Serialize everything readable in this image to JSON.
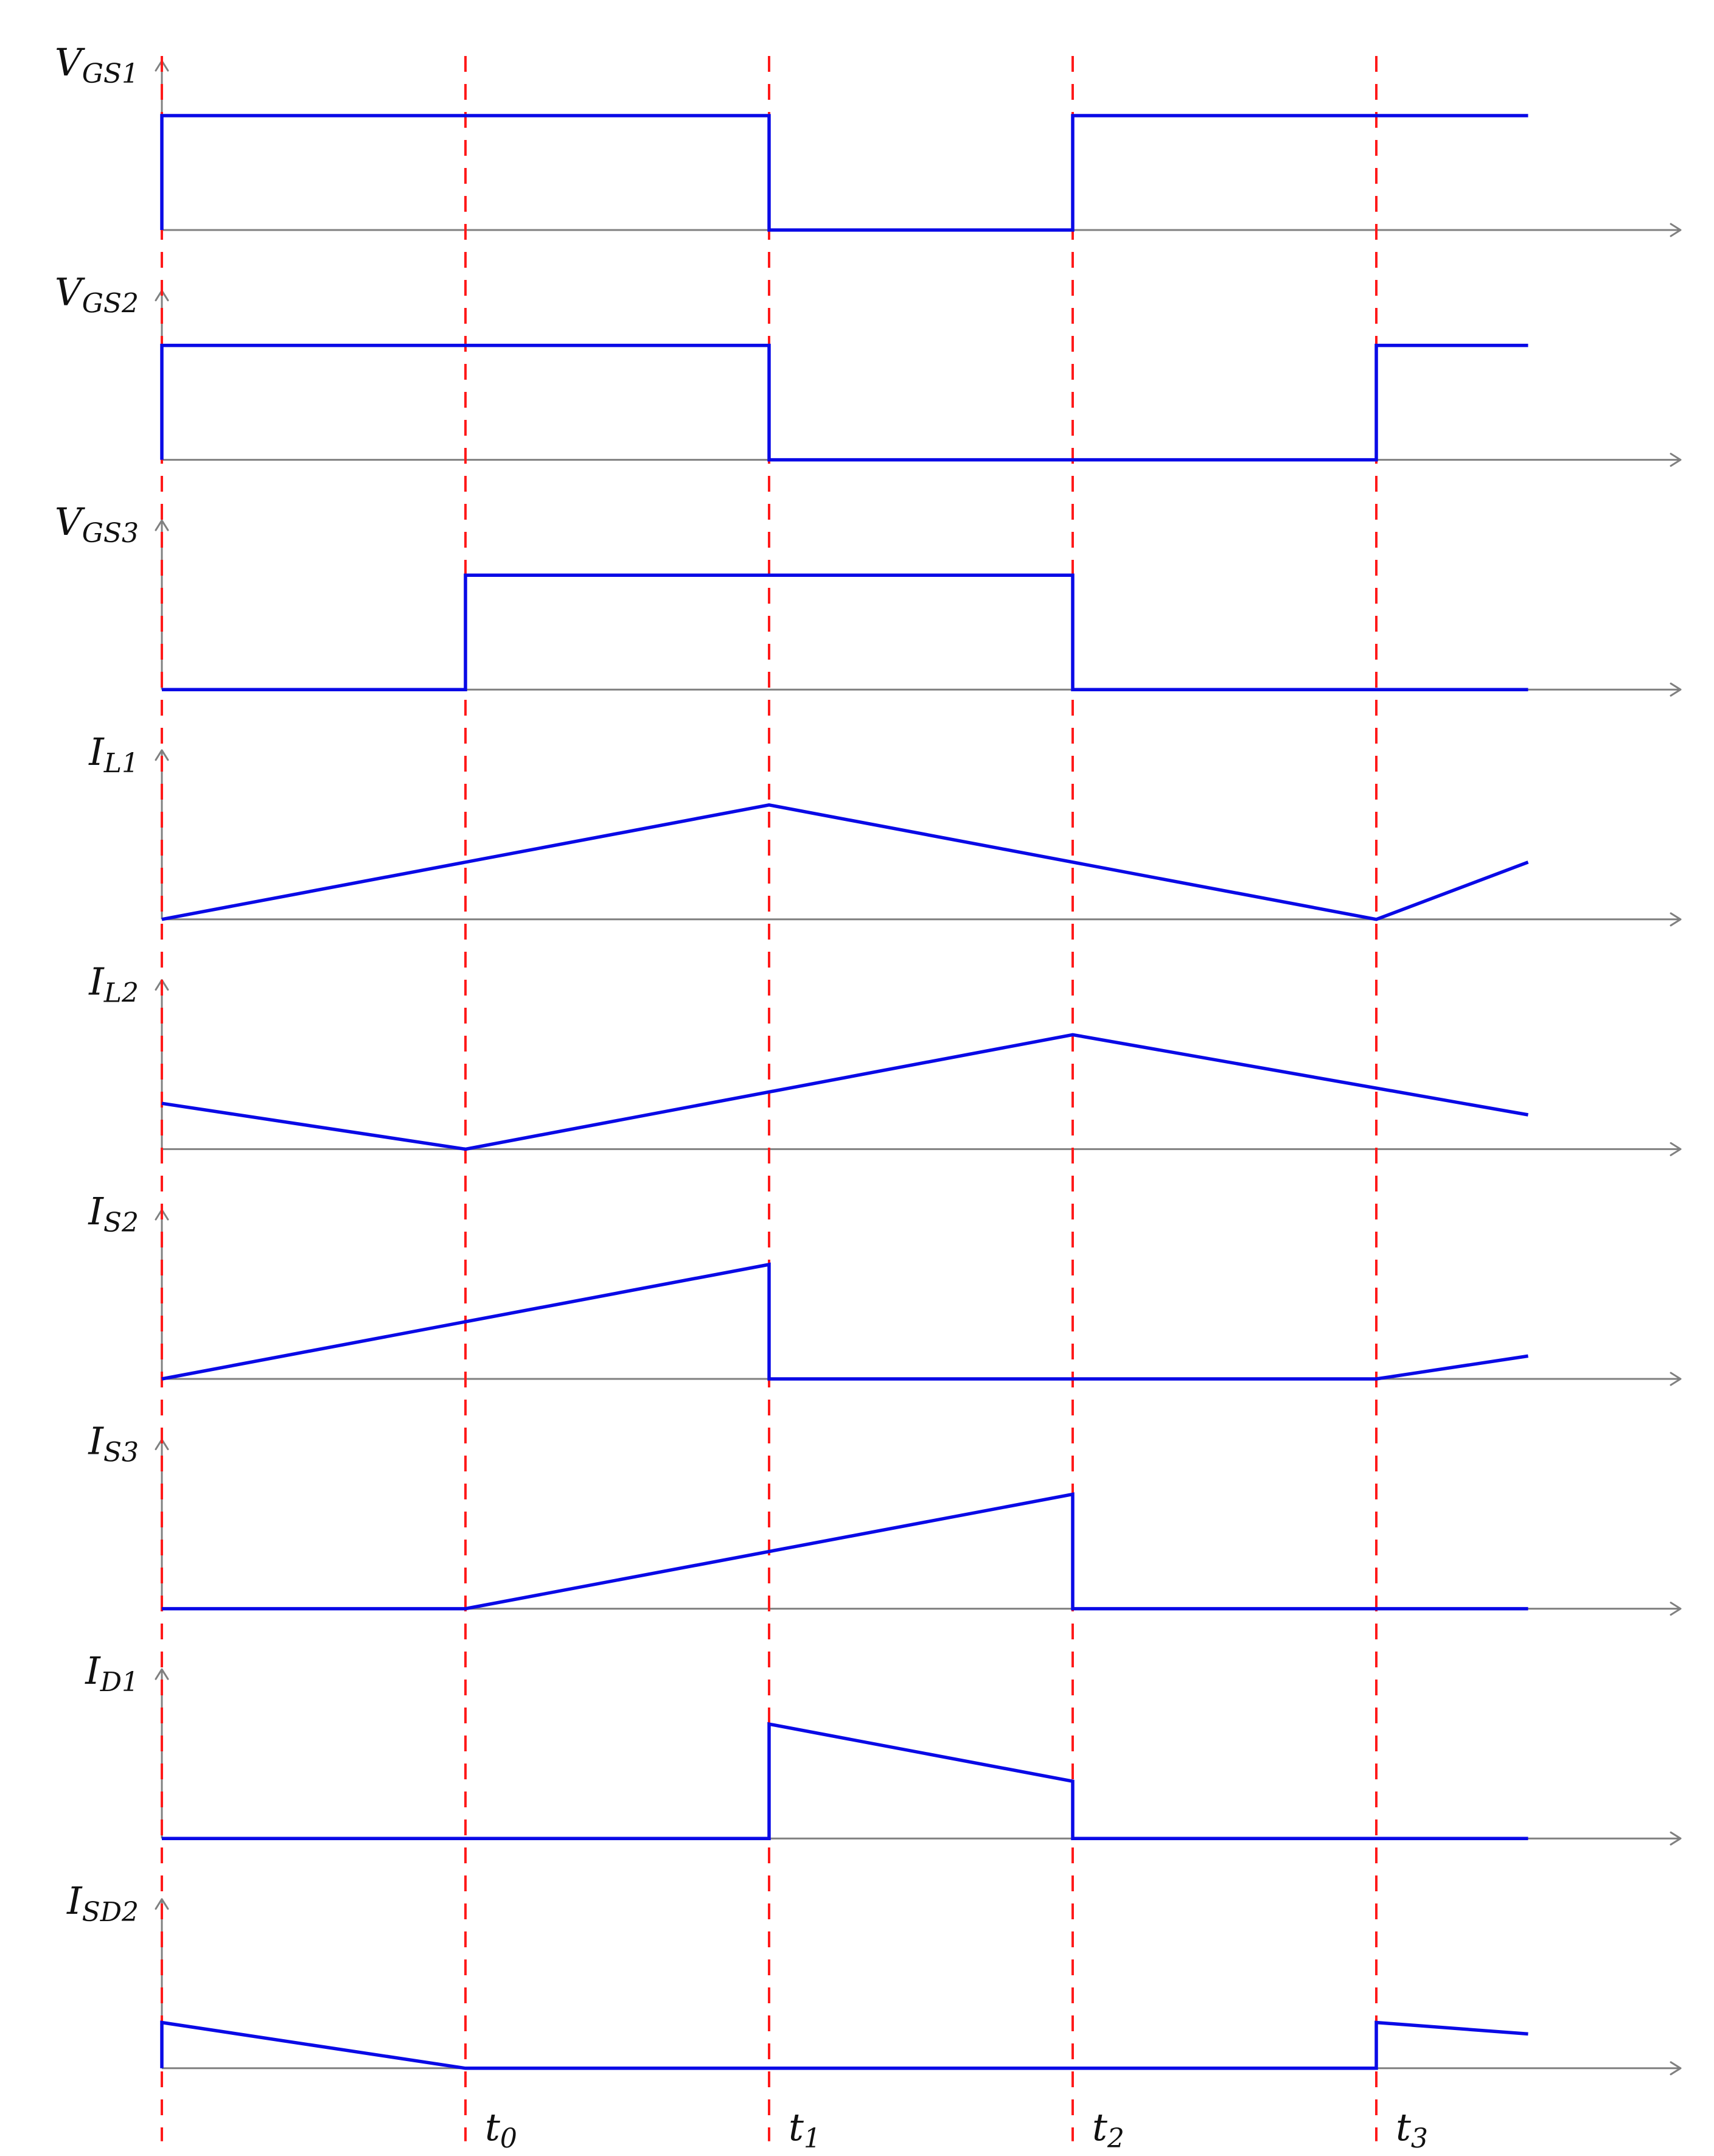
{
  "chart_data": {
    "type": "line",
    "title": "",
    "xlabel": "",
    "grid": false,
    "x_range": [
      0,
      4.5
    ],
    "time_markers": [
      {
        "x": 0,
        "label": "",
        "sub": ""
      },
      {
        "x": 1,
        "label": "t",
        "sub": "0"
      },
      {
        "x": 2,
        "label": "t",
        "sub": "1"
      },
      {
        "x": 3,
        "label": "t",
        "sub": "2"
      },
      {
        "x": 4,
        "label": "t",
        "sub": "3"
      }
    ],
    "series": [
      {
        "label": "V",
        "sub": "GS1",
        "ylim": [
          0,
          1.2
        ],
        "points": [
          [
            0,
            0
          ],
          [
            0,
            1
          ],
          [
            2,
            1
          ],
          [
            2,
            0
          ],
          [
            3,
            0
          ],
          [
            3,
            1
          ],
          [
            4.5,
            1
          ]
        ]
      },
      {
        "label": "V",
        "sub": "GS2",
        "ylim": [
          0,
          1.2
        ],
        "points": [
          [
            0,
            0
          ],
          [
            0,
            1
          ],
          [
            2,
            1
          ],
          [
            2,
            0
          ],
          [
            4,
            0
          ],
          [
            4,
            1
          ],
          [
            4.5,
            1
          ]
        ]
      },
      {
        "label": "V",
        "sub": "GS3",
        "ylim": [
          0,
          1.2
        ],
        "points": [
          [
            0,
            0
          ],
          [
            1,
            0
          ],
          [
            1,
            1
          ],
          [
            3,
            1
          ],
          [
            3,
            0
          ],
          [
            4.5,
            0
          ]
        ]
      },
      {
        "label": "I",
        "sub": "L1",
        "ylim": [
          0,
          1.2
        ],
        "points": [
          [
            0,
            0
          ],
          [
            2,
            1
          ],
          [
            4,
            0
          ],
          [
            4.5,
            0.5
          ]
        ]
      },
      {
        "label": "I",
        "sub": "L2",
        "ylim": [
          0,
          1.2
        ],
        "points": [
          [
            0,
            0.4
          ],
          [
            1,
            0
          ],
          [
            3,
            1
          ],
          [
            4.5,
            0.3
          ]
        ]
      },
      {
        "label": "I",
        "sub": "S2",
        "ylim": [
          0,
          1.2
        ],
        "points": [
          [
            0,
            0
          ],
          [
            2,
            1
          ],
          [
            2,
            0
          ],
          [
            4,
            0
          ],
          [
            4.5,
            0.2
          ]
        ]
      },
      {
        "label": "I",
        "sub": "S3",
        "ylim": [
          0,
          1.2
        ],
        "points": [
          [
            0,
            0
          ],
          [
            1,
            0
          ],
          [
            3,
            1
          ],
          [
            3,
            0
          ],
          [
            4.5,
            0
          ]
        ]
      },
      {
        "label": "I",
        "sub": "D1",
        "ylim": [
          0,
          1.2
        ],
        "points": [
          [
            0,
            0
          ],
          [
            2,
            0
          ],
          [
            2,
            1
          ],
          [
            3,
            0.5
          ],
          [
            3,
            0
          ],
          [
            4.5,
            0
          ]
        ]
      },
      {
        "label": "I",
        "sub": "SD2",
        "ylim": [
          0,
          1.2
        ],
        "points": [
          [
            0,
            0
          ],
          [
            0,
            0.4
          ],
          [
            1,
            0
          ],
          [
            4,
            0
          ],
          [
            4,
            0.4
          ],
          [
            4.5,
            0.3
          ]
        ]
      }
    ]
  }
}
